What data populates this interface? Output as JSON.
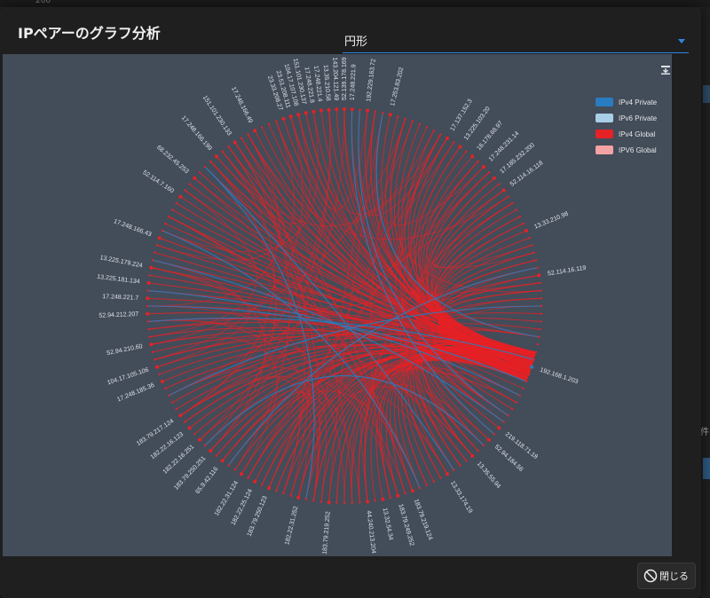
{
  "dialog": {
    "title": "IPペアーのグラフ分析",
    "layout_select": {
      "value": "円形"
    },
    "close_label": "閉じる"
  },
  "background": {
    "top_text": "200",
    "right_text": "件"
  },
  "colors": {
    "ipv4_private": "#2a7cc0",
    "ipv6_private": "#a9cfe8",
    "ipv4_global": "#e52226",
    "ipv6_global": "#f4a3a4",
    "plot_bg": "#434c59",
    "dialog_bg": "#1f1f1f",
    "accent": "#2f86e0"
  },
  "chart_data": {
    "type": "chord",
    "layout": "circular",
    "legend": [
      {
        "label": "IPv4 Private",
        "color_key": "ipv4_private"
      },
      {
        "label": "IPv6 Private",
        "color_key": "ipv6_private"
      },
      {
        "label": "IPv4 Global",
        "color_key": "ipv4_global"
      },
      {
        "label": "IPV6 Global",
        "color_key": "ipv6_global"
      }
    ],
    "legend_position": "top-right",
    "nodes": [
      {
        "label": "52.139.178.169",
        "type": "ipv4_global"
      },
      {
        "label": "17.253.83.202",
        "type": "ipv4_global"
      },
      {
        "label": "17.137.152.3",
        "type": "ipv4_global"
      },
      {
        "label": "13.225.103.20",
        "type": "ipv4_global"
      },
      {
        "label": "18.178.68.97",
        "type": "ipv4_global"
      },
      {
        "label": "17.248.231.14",
        "type": "ipv4_global"
      },
      {
        "label": "17.185.232.200",
        "type": "ipv4_global"
      },
      {
        "label": "52.114.16.118",
        "type": "ipv4_global"
      },
      {
        "label": "13.33.210.98",
        "type": "ipv4_global"
      },
      {
        "label": "52.114.16.119",
        "type": "ipv4_global"
      },
      {
        "label": "192.168.1.203",
        "type": "ipv4_private"
      },
      {
        "label": "219.118.71.18",
        "type": "ipv4_global"
      },
      {
        "label": "52.94.184.56",
        "type": "ipv4_global"
      },
      {
        "label": "13.35.55.94",
        "type": "ipv4_global"
      },
      {
        "label": "13.33.174.19",
        "type": "ipv4_global"
      },
      {
        "label": "183.79.219.124",
        "type": "ipv4_global"
      },
      {
        "label": "183.79.249.252",
        "type": "ipv4_global"
      },
      {
        "label": "13.32.54.34",
        "type": "ipv4_global"
      },
      {
        "label": "44.240.213.204",
        "type": "ipv4_global"
      },
      {
        "label": "183.79.219.252",
        "type": "ipv4_global"
      },
      {
        "label": "182.22.31.252",
        "type": "ipv4_global"
      },
      {
        "label": "183.79.250.123",
        "type": "ipv4_global"
      },
      {
        "label": "182.22.25.124",
        "type": "ipv4_global"
      },
      {
        "label": "182.22.31.124",
        "type": "ipv4_global"
      },
      {
        "label": "65.9.42.116",
        "type": "ipv4_global"
      },
      {
        "label": "183.79.250.251",
        "type": "ipv4_global"
      },
      {
        "label": "182.22.16.251",
        "type": "ipv4_global"
      },
      {
        "label": "182.22.16.123",
        "type": "ipv4_global"
      },
      {
        "label": "183.79.217.124",
        "type": "ipv4_global"
      },
      {
        "label": "17.248.185.36",
        "type": "ipv4_global"
      },
      {
        "label": "104.17.105.106",
        "type": "ipv4_global"
      },
      {
        "label": "52.94.210.60",
        "type": "ipv4_global"
      },
      {
        "label": "52.94.212.207",
        "type": "ipv4_global"
      },
      {
        "label": "17.248.221.7",
        "type": "ipv4_global"
      },
      {
        "label": "13.225.181.134",
        "type": "ipv4_global"
      },
      {
        "label": "13.225.179.224",
        "type": "ipv4_global"
      },
      {
        "label": "17.248.166.43",
        "type": "ipv4_global"
      },
      {
        "label": "52.114.7.160",
        "type": "ipv4_global"
      },
      {
        "label": "68.232.45.253",
        "type": "ipv4_global"
      },
      {
        "label": "17.248.166.199",
        "type": "ipv4_global"
      },
      {
        "label": "151.101.230.133",
        "type": "ipv4_global"
      },
      {
        "label": "17.248.166.49",
        "type": "ipv4_global"
      },
      {
        "label": "23.33.208.27",
        "type": "ipv4_global"
      },
      {
        "label": "23.51.208.111",
        "type": "ipv4_global"
      },
      {
        "label": "104.17.107.108",
        "type": "ipv4_global"
      },
      {
        "label": "151.101.230.137",
        "type": "ipv4_global"
      },
      {
        "label": "17.248.221.8",
        "type": "ipv4_global"
      },
      {
        "label": "17.248.221.4",
        "type": "ipv4_global"
      },
      {
        "label": "13.35.210.58",
        "type": "ipv4_global"
      },
      {
        "label": "143.204.121.49",
        "type": "ipv4_global"
      },
      {
        "label": "192.229.163.72",
        "type": "ipv4_global"
      },
      {
        "label": "17.248.221.9",
        "type": "ipv4_global"
      }
    ]
  }
}
